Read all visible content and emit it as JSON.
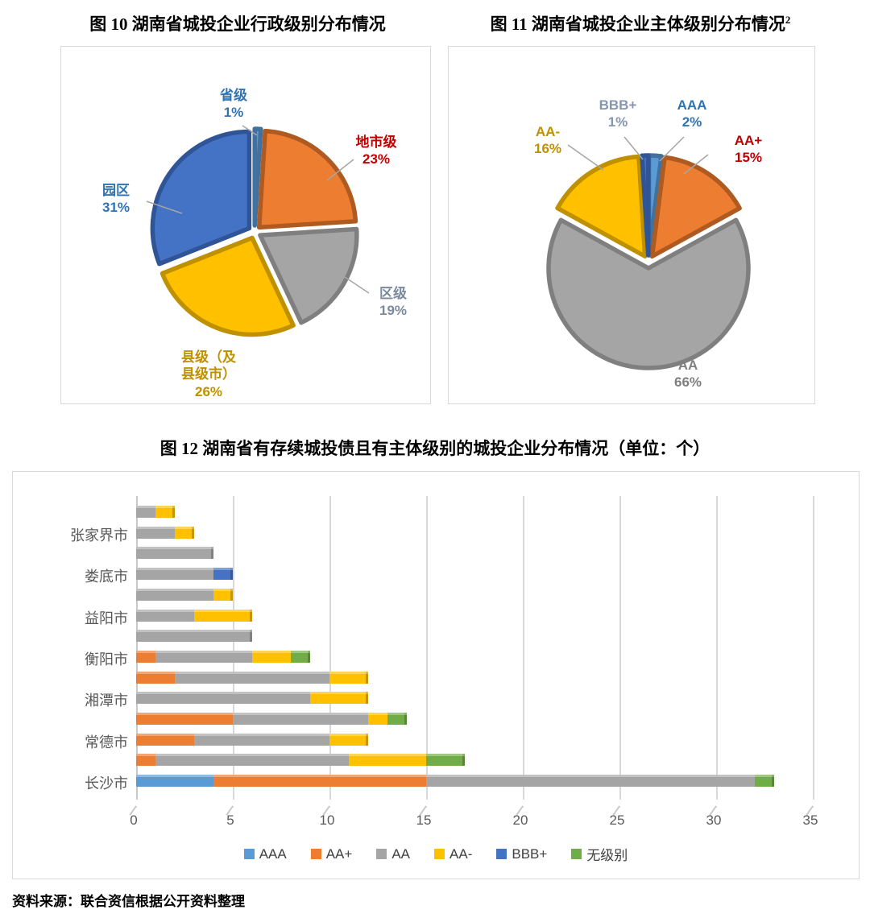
{
  "figures": {
    "fig10_title": "图 10  湖南省城投企业行政级别分布情况",
    "fig11_title": "图 11 湖南省城投企业主体级别分布情况",
    "fig11_title_sup": "2",
    "fig12_title": "图 12  湖南省有存续城投债且有主体级别的城投企业分布情况（单位：个）"
  },
  "source_line": "资料来源：联合资信根据公开资料整理",
  "chart_data": [
    {
      "id": "fig10",
      "type": "pie",
      "title": "湖南省城投企业行政级别分布情况",
      "unit": "%",
      "slices": [
        {
          "label": "省级",
          "pct": 1,
          "color": "#5B9BD5",
          "edge": "#41719C",
          "label_color": "#2E74B5",
          "label_text": "省级\n1%"
        },
        {
          "label": "地市级",
          "pct": 23,
          "color": "#ED7D31",
          "edge": "#AE5A21",
          "label_color": "#C00000",
          "label_text": "地市级\n23%"
        },
        {
          "label": "区级",
          "pct": 19,
          "color": "#A5A5A5",
          "edge": "#7F7F7F",
          "label_color": "#7B8A9D",
          "label_text": "区级\n19%"
        },
        {
          "label": "县级（及县级市）",
          "pct": 26,
          "color": "#FFC000",
          "edge": "#BF9000",
          "label_color": "#BF9000",
          "label_text": "县级（及\n县级市）\n26%"
        },
        {
          "label": "园区",
          "pct": 31,
          "color": "#4472C4",
          "edge": "#2F5597",
          "label_color": "#2E74B5",
          "label_text": "园区\n31%"
        }
      ]
    },
    {
      "id": "fig11",
      "type": "pie",
      "title": "湖南省城投企业主体级别分布情况",
      "unit": "%",
      "slices": [
        {
          "label": "AAA",
          "pct": 2,
          "color": "#5B9BD5",
          "edge": "#41719C",
          "label_color": "#2E74B5",
          "label_text": "AAA\n2%"
        },
        {
          "label": "AA+",
          "pct": 15,
          "color": "#ED7D31",
          "edge": "#AE5A21",
          "label_color": "#C00000",
          "label_text": "AA+\n15%"
        },
        {
          "label": "AA",
          "pct": 66,
          "color": "#A5A5A5",
          "edge": "#7F7F7F",
          "label_color": "#7F7F7F",
          "label_text": "AA\n66%"
        },
        {
          "label": "AA-",
          "pct": 16,
          "color": "#FFC000",
          "edge": "#BF9000",
          "label_color": "#BF9000",
          "label_text": "AA-\n16%"
        },
        {
          "label": "BBB+",
          "pct": 1,
          "color": "#4472C4",
          "edge": "#2F5597",
          "label_color": "#8496B0",
          "label_text": "BBB+\n1%"
        }
      ]
    },
    {
      "id": "fig12",
      "type": "bar",
      "orientation": "horizontal-stacked",
      "title": "湖南省有存续城投债且有主体级别的城投企业分布情况",
      "unit": "个",
      "xlim": [
        0,
        35
      ],
      "x_ticks": [
        0,
        5,
        10,
        15,
        20,
        25,
        30,
        35
      ],
      "grid": true,
      "legend_position": "bottom",
      "series": [
        {
          "name": "AAA",
          "color": "#5B9BD5"
        },
        {
          "name": "AA+",
          "color": "#ED7D31"
        },
        {
          "name": "AA",
          "color": "#A5A5A5"
        },
        {
          "name": "AA-",
          "color": "#FFC000"
        },
        {
          "name": "BBB+",
          "color": "#4472C4"
        },
        {
          "name": "无级别",
          "color": "#70AD47"
        }
      ],
      "rows": [
        {
          "label": "",
          "values": [
            0,
            0,
            1,
            1,
            0,
            0
          ]
        },
        {
          "label": "张家界市",
          "values": [
            0,
            0,
            2,
            1,
            0,
            0
          ]
        },
        {
          "label": "",
          "values": [
            0,
            0,
            4,
            0,
            0,
            0
          ]
        },
        {
          "label": "娄底市",
          "values": [
            0,
            0,
            4,
            0,
            1,
            0
          ]
        },
        {
          "label": "",
          "values": [
            0,
            0,
            4,
            1,
            0,
            0
          ]
        },
        {
          "label": "益阳市",
          "values": [
            0,
            0,
            3,
            3,
            0,
            0
          ]
        },
        {
          "label": "",
          "values": [
            0,
            0,
            6,
            0,
            0,
            0
          ]
        },
        {
          "label": "衡阳市",
          "values": [
            0,
            1,
            5,
            2,
            0,
            1
          ]
        },
        {
          "label": "",
          "values": [
            0,
            2,
            8,
            2,
            0,
            0
          ]
        },
        {
          "label": "湘潭市",
          "values": [
            0,
            0,
            9,
            3,
            0,
            0
          ]
        },
        {
          "label": "",
          "values": [
            0,
            5,
            7,
            1,
            0,
            1
          ]
        },
        {
          "label": "常德市",
          "values": [
            0,
            3,
            7,
            2,
            0,
            0
          ]
        },
        {
          "label": "",
          "values": [
            0,
            1,
            10,
            4,
            0,
            2
          ]
        },
        {
          "label": "长沙市",
          "values": [
            4,
            11,
            17,
            0,
            0,
            1
          ]
        }
      ]
    }
  ]
}
